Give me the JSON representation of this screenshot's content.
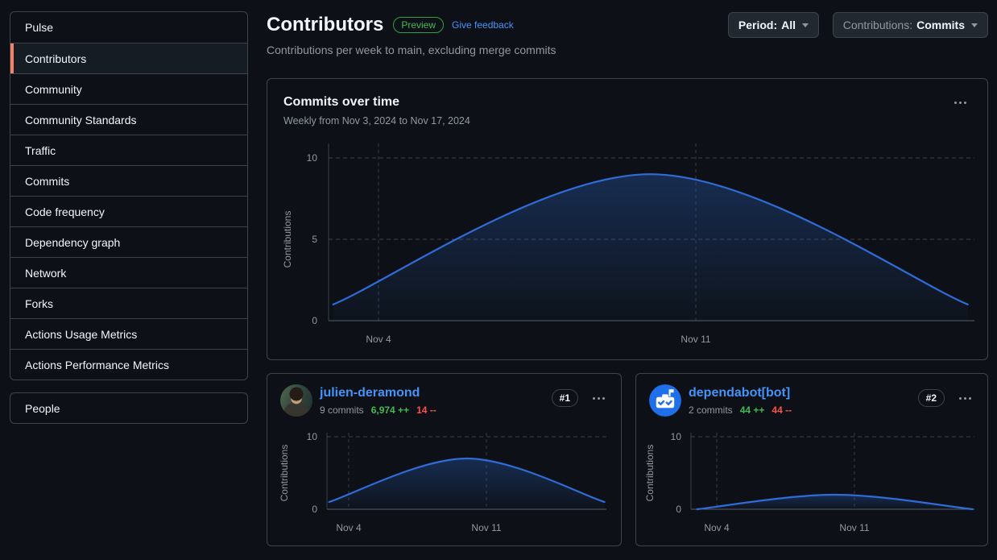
{
  "sidebar": {
    "items": [
      {
        "label": "Pulse",
        "selected": false
      },
      {
        "label": "Contributors",
        "selected": true
      },
      {
        "label": "Community",
        "selected": false
      },
      {
        "label": "Community Standards",
        "selected": false
      },
      {
        "label": "Traffic",
        "selected": false
      },
      {
        "label": "Commits",
        "selected": false
      },
      {
        "label": "Code frequency",
        "selected": false
      },
      {
        "label": "Dependency graph",
        "selected": false
      },
      {
        "label": "Network",
        "selected": false
      },
      {
        "label": "Forks",
        "selected": false
      },
      {
        "label": "Actions Usage Metrics",
        "selected": false
      },
      {
        "label": "Actions Performance Metrics",
        "selected": false
      }
    ],
    "people_label": "People"
  },
  "header": {
    "title": "Contributors",
    "preview_badge": "Preview",
    "feedback_link": "Give feedback",
    "subtitle": "Contributions per week to main, excluding merge commits",
    "period_button": {
      "label": "Period:",
      "value": "All"
    },
    "contributions_button": {
      "label": "Contributions:",
      "value": "Commits"
    }
  },
  "main_card": {
    "title": "Commits over time",
    "subtitle": "Weekly from Nov 3, 2024 to Nov 17, 2024"
  },
  "contributors": [
    {
      "rank": "#1",
      "name": "julien-deramond",
      "commits": "9 commits",
      "additions": "6,974 ++",
      "deletions": "14 --"
    },
    {
      "rank": "#2",
      "name": "dependabot[bot]",
      "commits": "2 commits",
      "additions": "44 ++",
      "deletions": "44 --"
    }
  ],
  "chart_data": [
    {
      "id": "commits-over-time",
      "type": "area",
      "title": "Commits over time",
      "x": [
        "Nov 3, 2024",
        "Nov 10, 2024",
        "Nov 17, 2024"
      ],
      "values": [
        1,
        9,
        1
      ],
      "ylabel": "Contributions",
      "xlabel": "",
      "ylim": [
        0,
        10
      ],
      "yticks": [
        0,
        5,
        10
      ],
      "xticks": [
        {
          "label": "Nov 4",
          "day": 1
        },
        {
          "label": "Nov 11",
          "day": 8
        }
      ],
      "grid": "dashed",
      "legend": "none"
    },
    {
      "id": "julien-deramond-commits",
      "type": "area",
      "title": "julien-deramond weekly commits",
      "x": [
        "Nov 3, 2024",
        "Nov 10, 2024",
        "Nov 17, 2024"
      ],
      "values": [
        1,
        7,
        1
      ],
      "ylabel": "Contributions",
      "xlabel": "",
      "ylim": [
        0,
        10
      ],
      "yticks": [
        0,
        10
      ],
      "xticks": [
        {
          "label": "Nov 4",
          "day": 1
        },
        {
          "label": "Nov 11",
          "day": 8
        }
      ],
      "grid": "dashed",
      "legend": "none"
    },
    {
      "id": "dependabot-commits",
      "type": "area",
      "title": "dependabot[bot] weekly commits",
      "x": [
        "Nov 3, 2024",
        "Nov 10, 2024",
        "Nov 17, 2024"
      ],
      "values": [
        0,
        2,
        0
      ],
      "ylabel": "Contributions",
      "xlabel": "",
      "ylim": [
        0,
        10
      ],
      "yticks": [
        0,
        10
      ],
      "xticks": [
        {
          "label": "Nov 4",
          "day": 1
        },
        {
          "label": "Nov 11",
          "day": 8
        }
      ],
      "grid": "dashed",
      "legend": "none"
    }
  ],
  "colors": {
    "background": "#0d1117",
    "border": "#3d444d",
    "text": "#f0f6fc",
    "muted": "#9198a1",
    "link": "#4493f8",
    "accent_bar": "#f78166",
    "preview_green": "#3fb950",
    "additions_green": "#3fb950",
    "deletions_red": "#f85149",
    "chart_line": "#2f6cd8",
    "grid": "#444c56",
    "axis": "#555e68",
    "dependabot_blue": "#1f6feb"
  }
}
